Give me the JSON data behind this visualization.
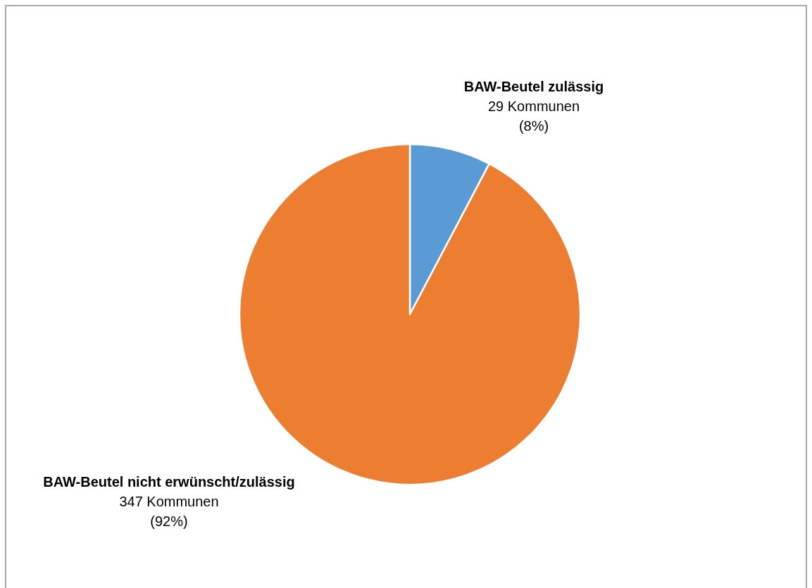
{
  "chart_data": {
    "type": "pie",
    "categories": [
      "BAW-Beutel zulässig",
      "BAW-Beutel nicht erwünscht/zulässig"
    ],
    "values": [
      29,
      347
    ],
    "colors": [
      "#5b9bd5",
      "#ed7d31"
    ],
    "value_labels": [
      "29 Kommunen\n(8%)",
      "347 Kommunen\n(92%)"
    ]
  }
}
